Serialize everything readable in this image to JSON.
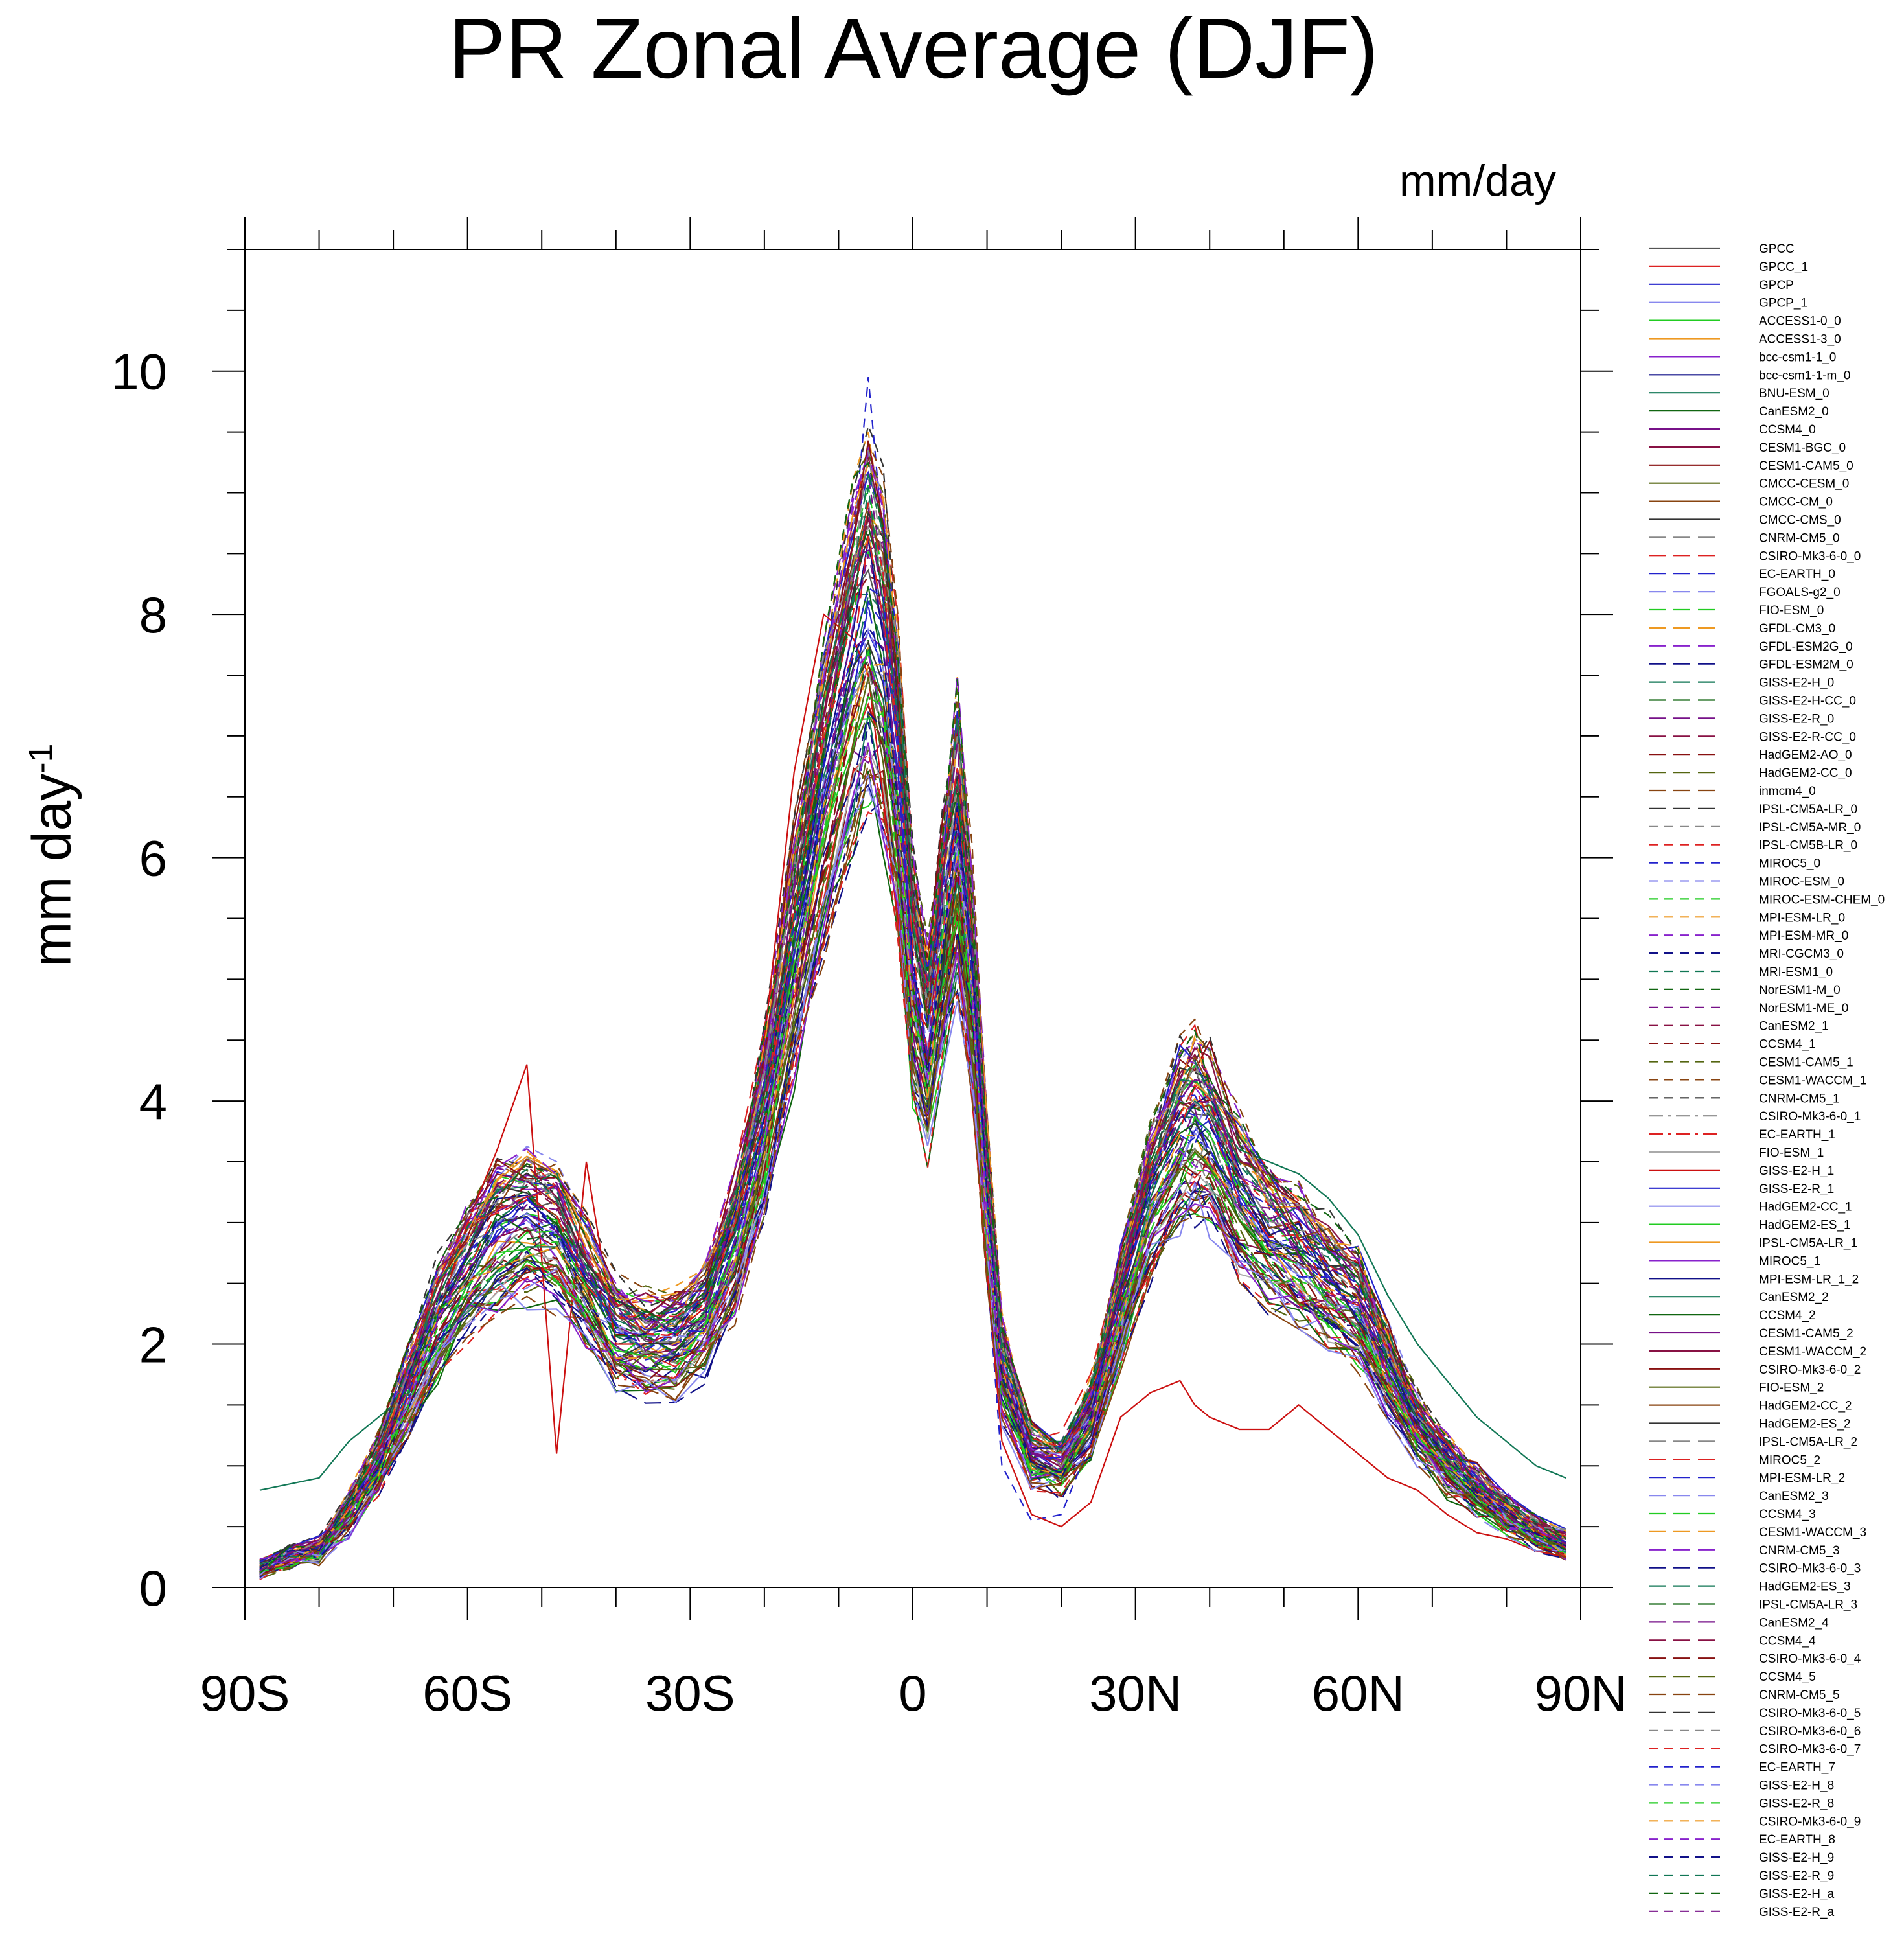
{
  "chart_data": {
    "type": "line",
    "title": "PR Zonal Average (DJF)",
    "units_label": "mm/day",
    "ylabel": "mm day",
    "ylabel_exponent": "-1",
    "xlabel": "",
    "xlim": [
      -90,
      90
    ],
    "ylim": [
      0,
      11
    ],
    "x_ticks": [
      {
        "value": -90,
        "label": "90S"
      },
      {
        "value": -60,
        "label": "60S"
      },
      {
        "value": -30,
        "label": "30S"
      },
      {
        "value": 0,
        "label": "0"
      },
      {
        "value": 30,
        "label": "30N"
      },
      {
        "value": 60,
        "label": "60N"
      },
      {
        "value": 90,
        "label": "90N"
      }
    ],
    "y_ticks": [
      {
        "value": 0,
        "label": "0"
      },
      {
        "value": 2,
        "label": "2"
      },
      {
        "value": 4,
        "label": "4"
      },
      {
        "value": 6,
        "label": "6"
      },
      {
        "value": 8,
        "label": "8"
      },
      {
        "value": 10,
        "label": "10"
      }
    ],
    "x": [
      -88,
      -84,
      -80,
      -76,
      -72,
      -68,
      -64,
      -60,
      -56,
      -52,
      -48,
      -44,
      -40,
      -36,
      -32,
      -28,
      -24,
      -20,
      -16,
      -12,
      -8,
      -6,
      -4,
      -2,
      0,
      2,
      4,
      6,
      8,
      10,
      12,
      16,
      20,
      24,
      28,
      32,
      36,
      38,
      40,
      44,
      48,
      52,
      56,
      60,
      64,
      68,
      72,
      76,
      80,
      84,
      88
    ],
    "base_profile": [
      0.15,
      0.25,
      0.3,
      0.6,
      1.0,
      1.6,
      2.2,
      2.6,
      2.9,
      3.0,
      2.9,
      2.5,
      2.1,
      2.0,
      2.0,
      2.2,
      2.8,
      3.8,
      5.2,
      6.5,
      7.6,
      8.0,
      7.6,
      6.6,
      5.0,
      4.4,
      5.3,
      6.2,
      5.0,
      3.2,
      1.8,
      1.1,
      1.0,
      1.4,
      2.3,
      3.2,
      3.7,
      3.8,
      3.7,
      3.2,
      2.9,
      2.7,
      2.5,
      2.3,
      1.8,
      1.3,
      1.0,
      0.8,
      0.6,
      0.45,
      0.35
    ],
    "series": [
      {
        "name": "GPCC",
        "color": "#555555",
        "style": "solid"
      },
      {
        "name": "GPCC_1",
        "color": "#dd2222",
        "style": "solid"
      },
      {
        "name": "GPCP",
        "color": "#2222cc",
        "style": "solid"
      },
      {
        "name": "GPCP_1",
        "color": "#8888ee",
        "style": "solid"
      },
      {
        "name": "ACCESS1-0_0",
        "color": "#22cc22",
        "style": "solid"
      },
      {
        "name": "ACCESS1-3_0",
        "color": "#ee9922",
        "style": "solid"
      },
      {
        "name": "bcc-csm1-1_0",
        "color": "#8822cc",
        "style": "solid"
      },
      {
        "name": "bcc-csm1-1-m_0",
        "color": "#111188",
        "style": "solid"
      },
      {
        "name": "BNU-ESM_0",
        "color": "#117755",
        "style": "solid"
      },
      {
        "name": "CanESM2_0",
        "color": "#116611",
        "style": "solid"
      },
      {
        "name": "CCSM4_0",
        "color": "#771188",
        "style": "solid"
      },
      {
        "name": "CESM1-BGC_0",
        "color": "#881144",
        "style": "solid"
      },
      {
        "name": "CESM1-CAM5_0",
        "color": "#881111",
        "style": "solid"
      },
      {
        "name": "CMCC-CESM_0",
        "color": "#556611",
        "style": "solid"
      },
      {
        "name": "CMCC-CM_0",
        "color": "#884411",
        "style": "solid"
      },
      {
        "name": "CMCC-CMS_0",
        "color": "#333333",
        "style": "solid"
      },
      {
        "name": "CNRM-CM5_0",
        "color": "#888888",
        "style": "longdash"
      },
      {
        "name": "CSIRO-Mk3-6-0_0",
        "color": "#dd2222",
        "style": "longdash"
      },
      {
        "name": "EC-EARTH_0",
        "color": "#2222cc",
        "style": "longdash"
      },
      {
        "name": "FGOALS-g2_0",
        "color": "#8888ee",
        "style": "longdash"
      },
      {
        "name": "FIO-ESM_0",
        "color": "#22cc22",
        "style": "longdash"
      },
      {
        "name": "GFDL-CM3_0",
        "color": "#ee9922",
        "style": "longdash"
      },
      {
        "name": "GFDL-ESM2G_0",
        "color": "#8822cc",
        "style": "longdash"
      },
      {
        "name": "GFDL-ESM2M_0",
        "color": "#111188",
        "style": "longdash"
      },
      {
        "name": "GISS-E2-H_0",
        "color": "#117755",
        "style": "longdash"
      },
      {
        "name": "GISS-E2-H-CC_0",
        "color": "#116611",
        "style": "longdash"
      },
      {
        "name": "GISS-E2-R_0",
        "color": "#771188",
        "style": "longdash"
      },
      {
        "name": "GISS-E2-R-CC_0",
        "color": "#881144",
        "style": "longdash"
      },
      {
        "name": "HadGEM2-AO_0",
        "color": "#881111",
        "style": "longdash"
      },
      {
        "name": "HadGEM2-CC_0",
        "color": "#556611",
        "style": "longdash"
      },
      {
        "name": "inmcm4_0",
        "color": "#884411",
        "style": "longdash"
      },
      {
        "name": "IPSL-CM5A-LR_0",
        "color": "#333333",
        "style": "longdash"
      },
      {
        "name": "IPSL-CM5A-MR_0",
        "color": "#888888",
        "style": "dash"
      },
      {
        "name": "IPSL-CM5B-LR_0",
        "color": "#dd2222",
        "style": "dash"
      },
      {
        "name": "MIROC5_0",
        "color": "#2222cc",
        "style": "dash"
      },
      {
        "name": "MIROC-ESM_0",
        "color": "#8888ee",
        "style": "dash"
      },
      {
        "name": "MIROC-ESM-CHEM_0",
        "color": "#22cc22",
        "style": "dash"
      },
      {
        "name": "MPI-ESM-LR_0",
        "color": "#ee9922",
        "style": "dash"
      },
      {
        "name": "MPI-ESM-MR_0",
        "color": "#8822cc",
        "style": "dash"
      },
      {
        "name": "MRI-CGCM3_0",
        "color": "#111188",
        "style": "dash"
      },
      {
        "name": "MRI-ESM1_0",
        "color": "#117755",
        "style": "dash"
      },
      {
        "name": "NorESM1-M_0",
        "color": "#116611",
        "style": "dash"
      },
      {
        "name": "NorESM1-ME_0",
        "color": "#771188",
        "style": "dash"
      },
      {
        "name": "CanESM2_1",
        "color": "#881144",
        "style": "dash"
      },
      {
        "name": "CCSM4_1",
        "color": "#881111",
        "style": "dash"
      },
      {
        "name": "CESM1-CAM5_1",
        "color": "#556611",
        "style": "dash"
      },
      {
        "name": "CESM1-WACCM_1",
        "color": "#884411",
        "style": "dash"
      },
      {
        "name": "CNRM-CM5_1",
        "color": "#333333",
        "style": "dash"
      },
      {
        "name": "CSIRO-Mk3-6-0_1",
        "color": "#888888",
        "style": "dashdot"
      },
      {
        "name": "EC-EARTH_1",
        "color": "#dd2222",
        "style": "dashdot"
      },
      {
        "name": "FIO-ESM_1",
        "color": "#aaaaaa",
        "style": "solid"
      },
      {
        "name": "GISS-E2-H_1",
        "color": "#cc1111",
        "style": "solid"
      },
      {
        "name": "GISS-E2-R_1",
        "color": "#2222cc",
        "style": "solid"
      },
      {
        "name": "HadGEM2-CC_1",
        "color": "#8888ee",
        "style": "solid"
      },
      {
        "name": "HadGEM2-ES_1",
        "color": "#22cc22",
        "style": "solid"
      },
      {
        "name": "IPSL-CM5A-LR_1",
        "color": "#ee9922",
        "style": "solid"
      },
      {
        "name": "MIROC5_1",
        "color": "#8822cc",
        "style": "solid"
      },
      {
        "name": "MPI-ESM-LR_1_2",
        "color": "#111188",
        "style": "solid"
      },
      {
        "name": "CanESM2_2",
        "color": "#117755",
        "style": "solid"
      },
      {
        "name": "CCSM4_2",
        "color": "#116611",
        "style": "solid"
      },
      {
        "name": "CESM1-CAM5_2",
        "color": "#771188",
        "style": "solid"
      },
      {
        "name": "CESM1-WACCM_2",
        "color": "#881144",
        "style": "solid"
      },
      {
        "name": "CSIRO-Mk3-6-0_2",
        "color": "#881111",
        "style": "solid"
      },
      {
        "name": "FIO-ESM_2",
        "color": "#556611",
        "style": "solid"
      },
      {
        "name": "HadGEM2-CC_2",
        "color": "#884411",
        "style": "solid"
      },
      {
        "name": "HadGEM2-ES_2",
        "color": "#333333",
        "style": "solid"
      },
      {
        "name": "IPSL-CM5A-LR_2",
        "color": "#888888",
        "style": "longdash"
      },
      {
        "name": "MIROC5_2",
        "color": "#dd2222",
        "style": "longdash"
      },
      {
        "name": "MPI-ESM-LR_2",
        "color": "#2222cc",
        "style": "longdash"
      },
      {
        "name": "CanESM2_3",
        "color": "#8888ee",
        "style": "longdash"
      },
      {
        "name": "CCSM4_3",
        "color": "#22cc22",
        "style": "longdash"
      },
      {
        "name": "CESM1-WACCM_3",
        "color": "#ee9922",
        "style": "longdash"
      },
      {
        "name": "CNRM-CM5_3",
        "color": "#8822cc",
        "style": "longdash"
      },
      {
        "name": "CSIRO-Mk3-6-0_3",
        "color": "#111188",
        "style": "longdash"
      },
      {
        "name": "HadGEM2-ES_3",
        "color": "#117755",
        "style": "longdash"
      },
      {
        "name": "IPSL-CM5A-LR_3",
        "color": "#116611",
        "style": "longdash"
      },
      {
        "name": "CanESM2_4",
        "color": "#771188",
        "style": "longdash"
      },
      {
        "name": "CCSM4_4",
        "color": "#881144",
        "style": "longdash"
      },
      {
        "name": "CSIRO-Mk3-6-0_4",
        "color": "#881111",
        "style": "longdash"
      },
      {
        "name": "CCSM4_5",
        "color": "#556611",
        "style": "longdash"
      },
      {
        "name": "CNRM-CM5_5",
        "color": "#884411",
        "style": "longdash"
      },
      {
        "name": "CSIRO-Mk3-6-0_5",
        "color": "#333333",
        "style": "longdash"
      },
      {
        "name": "CSIRO-Mk3-6-0_6",
        "color": "#888888",
        "style": "dash"
      },
      {
        "name": "CSIRO-Mk3-6-0_7",
        "color": "#dd2222",
        "style": "dash"
      },
      {
        "name": "EC-EARTH_7",
        "color": "#2222cc",
        "style": "dash"
      },
      {
        "name": "GISS-E2-H_8",
        "color": "#8888ee",
        "style": "dash"
      },
      {
        "name": "GISS-E2-R_8",
        "color": "#22cc22",
        "style": "dash"
      },
      {
        "name": "CSIRO-Mk3-6-0_9",
        "color": "#ee9922",
        "style": "dash"
      },
      {
        "name": "EC-EARTH_8",
        "color": "#8822cc",
        "style": "dash"
      },
      {
        "name": "GISS-E2-H_9",
        "color": "#111188",
        "style": "dash"
      },
      {
        "name": "GISS-E2-R_9",
        "color": "#117755",
        "style": "dash"
      },
      {
        "name": "GISS-E2-H_a",
        "color": "#116611",
        "style": "dash"
      },
      {
        "name": "GISS-E2-R_a",
        "color": "#771188",
        "style": "dash"
      }
    ],
    "highlighted_series": [
      {
        "name": "GISS-E2-H_1",
        "values": [
          0.15,
          0.2,
          0.3,
          0.6,
          1.0,
          1.6,
          2.2,
          3.0,
          3.6,
          4.3,
          1.1,
          3.5,
          2.0,
          2.0,
          2.1,
          2.3,
          3.0,
          4.5,
          6.7,
          8.0,
          7.8,
          7.5,
          6.5,
          5.5,
          4.8,
          4.6,
          5.3,
          5.2,
          4.0,
          2.6,
          1.2,
          0.6,
          0.5,
          0.7,
          1.4,
          1.6,
          1.7,
          1.5,
          1.4,
          1.3,
          1.3,
          1.5,
          1.3,
          1.1,
          0.9,
          0.8,
          0.6,
          0.45,
          0.4,
          0.3,
          0.25
        ]
      },
      {
        "name": "CanESM2_2",
        "values": [
          0.8,
          0.85,
          0.9,
          1.2,
          1.4,
          1.6,
          2.0,
          2.3,
          2.6,
          2.8,
          2.8,
          2.5,
          2.2,
          2.1,
          2.2,
          2.4,
          2.9,
          3.9,
          5.3,
          6.6,
          7.4,
          7.7,
          7.3,
          6.4,
          4.9,
          4.3,
          5.0,
          5.8,
          4.8,
          3.1,
          1.7,
          1.0,
          0.9,
          1.3,
          2.2,
          3.2,
          3.8,
          4.0,
          3.9,
          3.6,
          3.5,
          3.4,
          3.2,
          2.9,
          2.4,
          2.0,
          1.7,
          1.4,
          1.2,
          1.0,
          0.9
        ]
      },
      {
        "name": "MIROC5_0",
        "values": [
          0.1,
          0.2,
          0.3,
          0.6,
          1.0,
          1.6,
          2.2,
          2.6,
          2.9,
          3.0,
          2.9,
          2.5,
          2.1,
          2.0,
          2.0,
          2.2,
          2.8,
          3.8,
          5.3,
          6.8,
          8.6,
          9.95,
          8.6,
          7.2,
          5.1,
          4.1,
          5.6,
          6.4,
          5.0,
          2.6,
          1.0,
          0.55,
          0.6,
          1.2,
          2.2,
          3.1,
          3.6,
          3.7,
          3.6,
          3.2,
          2.9,
          2.7,
          2.5,
          2.3,
          1.8,
          1.3,
          1.0,
          0.8,
          0.6,
          0.45,
          0.3
        ]
      }
    ]
  },
  "legend": {
    "position": "right",
    "entries": [
      "GPCC",
      "GPCC_1",
      "GPCP",
      "GPCP_1",
      "ACCESS1-0_0",
      "ACCESS1-3_0",
      "bcc-csm1-1_0",
      "bcc-csm1-1-m_0",
      "BNU-ESM_0",
      "CanESM2_0",
      "CCSM4_0",
      "CESM1-BGC_0",
      "CESM1-CAM5_0",
      "CMCC-CESM_0",
      "CMCC-CM_0",
      "CMCC-CMS_0",
      "CNRM-CM5_0",
      "CSIRO-Mk3-6-0_0",
      "EC-EARTH_0",
      "FGOALS-g2_0",
      "FIO-ESM_0",
      "GFDL-CM3_0",
      "GFDL-ESM2G_0",
      "GFDL-ESM2M_0",
      "GISS-E2-H_0",
      "GISS-E2-H-CC_0",
      "GISS-E2-R_0",
      "GISS-E2-R-CC_0",
      "HadGEM2-AO_0",
      "HadGEM2-CC_0",
      "inmcm4_0",
      "IPSL-CM5A-LR_0",
      "IPSL-CM5A-MR_0",
      "IPSL-CM5B-LR_0",
      "MIROC5_0",
      "MIROC-ESM_0",
      "MIROC-ESM-CHEM_0",
      "MPI-ESM-LR_0",
      "MPI-ESM-MR_0",
      "MRI-CGCM3_0",
      "MRI-ESM1_0",
      "NorESM1-M_0",
      "NorESM1-ME_0",
      "CanESM2_1",
      "CCSM4_1",
      "CESM1-CAM5_1",
      "CESM1-WACCM_1",
      "CNRM-CM5_1",
      "CSIRO-Mk3-6-0_1",
      "EC-EARTH_1",
      "FIO-ESM_1",
      "GISS-E2-H_1",
      "GISS-E2-R_1",
      "HadGEM2-CC_1",
      "HadGEM2-ES_1",
      "IPSL-CM5A-LR_1",
      "MIROC5_1",
      "MPI-ESM-LR_1_2",
      "CanESM2_2",
      "CCSM4_2",
      "CESM1-CAM5_2",
      "CESM1-WACCM_2",
      "CSIRO-Mk3-6-0_2",
      "FIO-ESM_2",
      "HadGEM2-CC_2",
      "HadGEM2-ES_2",
      "IPSL-CM5A-LR_2",
      "MIROC5_2",
      "MPI-ESM-LR_2",
      "CanESM2_3",
      "CCSM4_3",
      "CESM1-WACCM_3",
      "CNRM-CM5_3",
      "CSIRO-Mk3-6-0_3",
      "HadGEM2-ES_3",
      "IPSL-CM5A-LR_3",
      "CanESM2_4",
      "CCSM4_4",
      "CSIRO-Mk3-6-0_4",
      "CCSM4_5",
      "CNRM-CM5_5",
      "CSIRO-Mk3-6-0_5",
      "CSIRO-Mk3-6-0_6",
      "CSIRO-Mk3-6-0_7",
      "EC-EARTH_7",
      "GISS-E2-H_8",
      "GISS-E2-R_8",
      "CSIRO-Mk3-6-0_9",
      "EC-EARTH_8",
      "GISS-E2-H_9",
      "GISS-E2-R_9",
      "GISS-E2-H_a",
      "GISS-E2-R_a"
    ]
  }
}
